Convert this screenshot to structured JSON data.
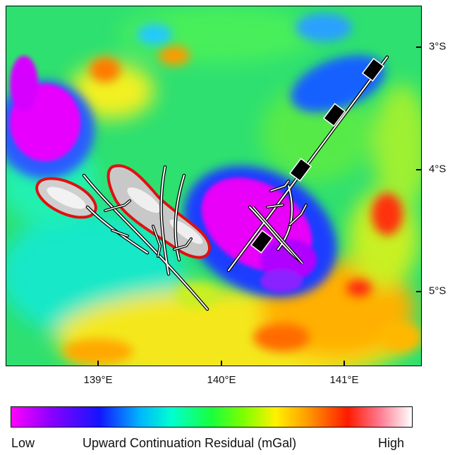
{
  "longitude_labels": [
    "139°E",
    "140°E",
    "141°E"
  ],
  "latitude_labels": [
    "3°S",
    "4°S",
    "5°S"
  ],
  "colorbar": {
    "low_label": "Low",
    "title": "Upward Continuation Residual (mGal)",
    "high_label": "High",
    "colors": [
      "#ff00ff",
      "#1414ff",
      "#00ffd0",
      "#19ff3c",
      "#fff200",
      "#ff1a00",
      "#ffffff"
    ]
  }
}
